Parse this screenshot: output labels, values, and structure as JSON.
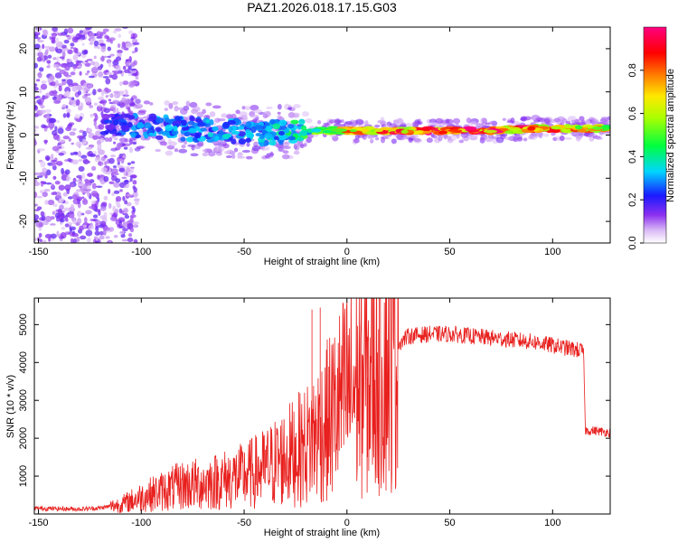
{
  "title": "PAZ1.2026.018.17.15.G03",
  "colors": {
    "snr_line": "#e8201e",
    "axis": "#000000"
  },
  "chart_data": [
    {
      "type": "heatmap",
      "name": "spectrogram",
      "xlabel": "Height of straight line (km)",
      "ylabel": "Frequency (Hz)",
      "xlim": [
        -152,
        128
      ],
      "ylim": [
        -25,
        25
      ],
      "xticks": [
        -150,
        -100,
        -50,
        0,
        50,
        100
      ],
      "xtick_labels": [
        "-150",
        "-100",
        "-50",
        "0",
        "50",
        "100"
      ],
      "yticks": [
        -20,
        -10,
        0,
        10,
        20
      ],
      "ytick_labels": [
        "-20",
        "-10",
        "0",
        "10",
        "20"
      ],
      "colorbar": {
        "label": "Normalized spectral amplitude",
        "range": [
          0,
          1
        ],
        "ticks": [
          0.0,
          0.2,
          0.4,
          0.6,
          0.8
        ],
        "tick_labels": [
          "0.0",
          "0.2",
          "0.4",
          "0.6",
          "0.8"
        ],
        "colormap": "rainbow (violet-blue-cyan-green-yellow-red-magenta)"
      },
      "main_ridge": [
        {
          "x": -115,
          "freq": 2.5,
          "amp": 0.22
        },
        {
          "x": -100,
          "freq": 2.0,
          "amp": 0.28
        },
        {
          "x": -80,
          "freq": 1.5,
          "amp": 0.3
        },
        {
          "x": -60,
          "freq": 1.0,
          "amp": 0.32
        },
        {
          "x": -40,
          "freq": 0.5,
          "amp": 0.32
        },
        {
          "x": -20,
          "freq": 1.0,
          "amp": 0.45
        },
        {
          "x": 0,
          "freq": 1.0,
          "amp": 0.75
        },
        {
          "x": 10,
          "freq": 1.0,
          "amp": 0.8
        },
        {
          "x": 30,
          "freq": 1.0,
          "amp": 0.85
        },
        {
          "x": 50,
          "freq": 1.0,
          "amp": 0.95
        },
        {
          "x": 70,
          "freq": 1.0,
          "amp": 0.9
        },
        {
          "x": 90,
          "freq": 1.5,
          "amp": 0.85
        },
        {
          "x": 110,
          "freq": 1.5,
          "amp": 0.75
        },
        {
          "x": 128,
          "freq": 1.5,
          "amp": 0.7
        }
      ],
      "note": "Broadband low-amplitude scatter (amp < 0.2) spans -25..25 Hz for heights below about -105 km; a narrow ridge near 1 Hz strengthens toward higher heights."
    },
    {
      "type": "line",
      "name": "snr",
      "xlabel": "Height of straight line (km)",
      "ylabel": "SNR (10 * v/v)",
      "xlim": [
        -152,
        128
      ],
      "ylim": [
        0,
        5700
      ],
      "xticks": [
        -150,
        -100,
        -50,
        0,
        50,
        100
      ],
      "xtick_labels": [
        "-150",
        "-100",
        "-50",
        "0",
        "50",
        "100"
      ],
      "yticks": [
        1000,
        2000,
        3000,
        4000,
        5000
      ],
      "ytick_labels": [
        "1000",
        "2000",
        "3000",
        "4000",
        "5000"
      ],
      "series": [
        {
          "name": "SNR",
          "x": [
            -152,
            -140,
            -130,
            -120,
            -110,
            -100,
            -90,
            -80,
            -70,
            -60,
            -50,
            -40,
            -30,
            -20,
            -15,
            -10,
            -5,
            0,
            5,
            10,
            15,
            20,
            25,
            30,
            40,
            50,
            60,
            70,
            80,
            90,
            100,
            110,
            115,
            116,
            120,
            128
          ],
          "y": [
            150,
            140,
            130,
            160,
            250,
            450,
            600,
            750,
            800,
            900,
            1000,
            1200,
            1500,
            1800,
            2100,
            2400,
            2800,
            3200,
            3400,
            3600,
            3900,
            4200,
            4500,
            4700,
            4750,
            4750,
            4700,
            4650,
            4600,
            4550,
            4450,
            4350,
            4300,
            2200,
            2200,
            2150
          ]
        }
      ],
      "spikes": [
        {
          "x": -17,
          "y": 5400
        },
        {
          "x": -13,
          "y": 5450
        },
        {
          "x": 9,
          "y": 5700
        },
        {
          "x": 10,
          "y": 1500
        }
      ]
    }
  ]
}
